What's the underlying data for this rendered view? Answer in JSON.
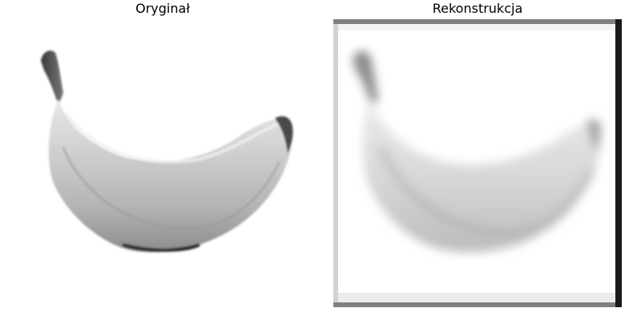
{
  "panels": {
    "original": {
      "title": "Oryginał",
      "subject": "banana"
    },
    "reconstruction": {
      "title": "Rekonstrukcja",
      "subject": "banana"
    }
  },
  "colors": {
    "background": "#ffffff",
    "frame_light": "#d3d3d3",
    "frame_mid": "#808080",
    "frame_dark": "#1a1a1a"
  }
}
